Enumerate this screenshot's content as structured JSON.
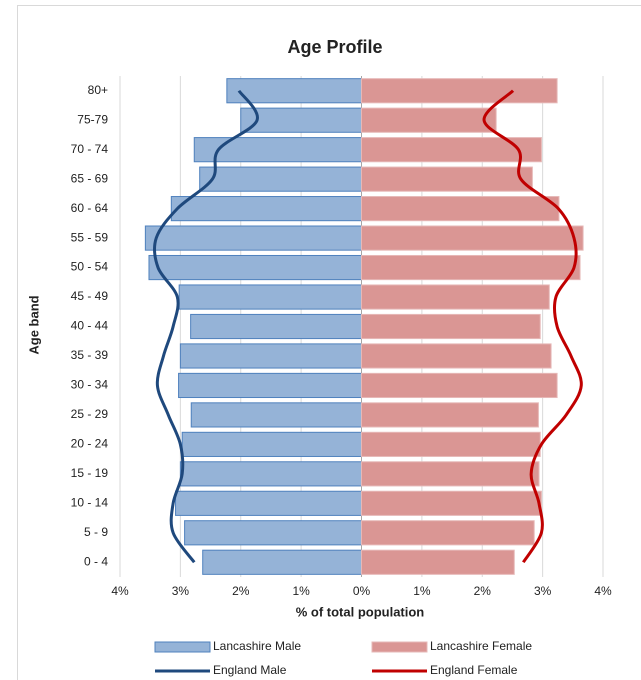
{
  "chart_data": {
    "type": "bar",
    "orientation": "horizontal-pyramid",
    "title": "Age Profile",
    "x_label": "% of total population",
    "y_label": "Age band",
    "categories": [
      "0 - 4",
      "5 - 9",
      "10 - 14",
      "15 - 19",
      "20 - 24",
      "25 - 29",
      "30 - 34",
      "35 - 39",
      "40 - 44",
      "45 - 49",
      "50 - 54",
      "55 - 59",
      "60 - 64",
      "65 - 69",
      "70 - 74",
      "75-79",
      "80+"
    ],
    "series": [
      {
        "name": "Lancashire Male",
        "type": "bar",
        "side": "left",
        "color": "#95b3d7",
        "edge": "#4f81bd",
        "values": [
          2.63,
          2.93,
          3.08,
          3.0,
          2.97,
          2.82,
          3.03,
          3.0,
          2.83,
          3.02,
          3.52,
          3.58,
          3.15,
          2.68,
          2.77,
          2.0,
          2.23
        ]
      },
      {
        "name": "Lancashire Female",
        "type": "bar",
        "side": "right",
        "color": "#da9694",
        "edge": "#e6b8b7",
        "values": [
          2.53,
          2.86,
          2.98,
          2.94,
          2.96,
          2.93,
          3.24,
          3.14,
          2.96,
          3.11,
          3.62,
          3.67,
          3.27,
          2.83,
          2.98,
          2.23,
          3.24
        ]
      },
      {
        "name": "England Male",
        "type": "line",
        "side": "left",
        "color": "#1f497d",
        "values": [
          2.77,
          3.12,
          3.12,
          2.97,
          3.0,
          3.2,
          3.38,
          3.28,
          3.12,
          3.05,
          3.37,
          3.4,
          3.05,
          2.47,
          2.37,
          1.73,
          2.03
        ]
      },
      {
        "name": "England Female",
        "type": "line",
        "side": "right",
        "color": "#c00000",
        "values": [
          2.68,
          2.98,
          2.94,
          2.81,
          2.98,
          3.39,
          3.64,
          3.47,
          3.24,
          3.22,
          3.52,
          3.52,
          3.26,
          2.64,
          2.6,
          2.03,
          2.51
        ]
      }
    ],
    "xlim": [
      -4,
      4
    ],
    "xticks": [
      {
        "value": -4,
        "label": "4%"
      },
      {
        "value": -3,
        "label": "3%"
      },
      {
        "value": -2,
        "label": "2%"
      },
      {
        "value": -1,
        "label": "1%"
      },
      {
        "value": 0,
        "label": "0%"
      },
      {
        "value": 1,
        "label": "1%"
      },
      {
        "value": 2,
        "label": "2%"
      },
      {
        "value": 3,
        "label": "3%"
      },
      {
        "value": 4,
        "label": "4%"
      }
    ],
    "grid": true,
    "legend": "bottom"
  }
}
